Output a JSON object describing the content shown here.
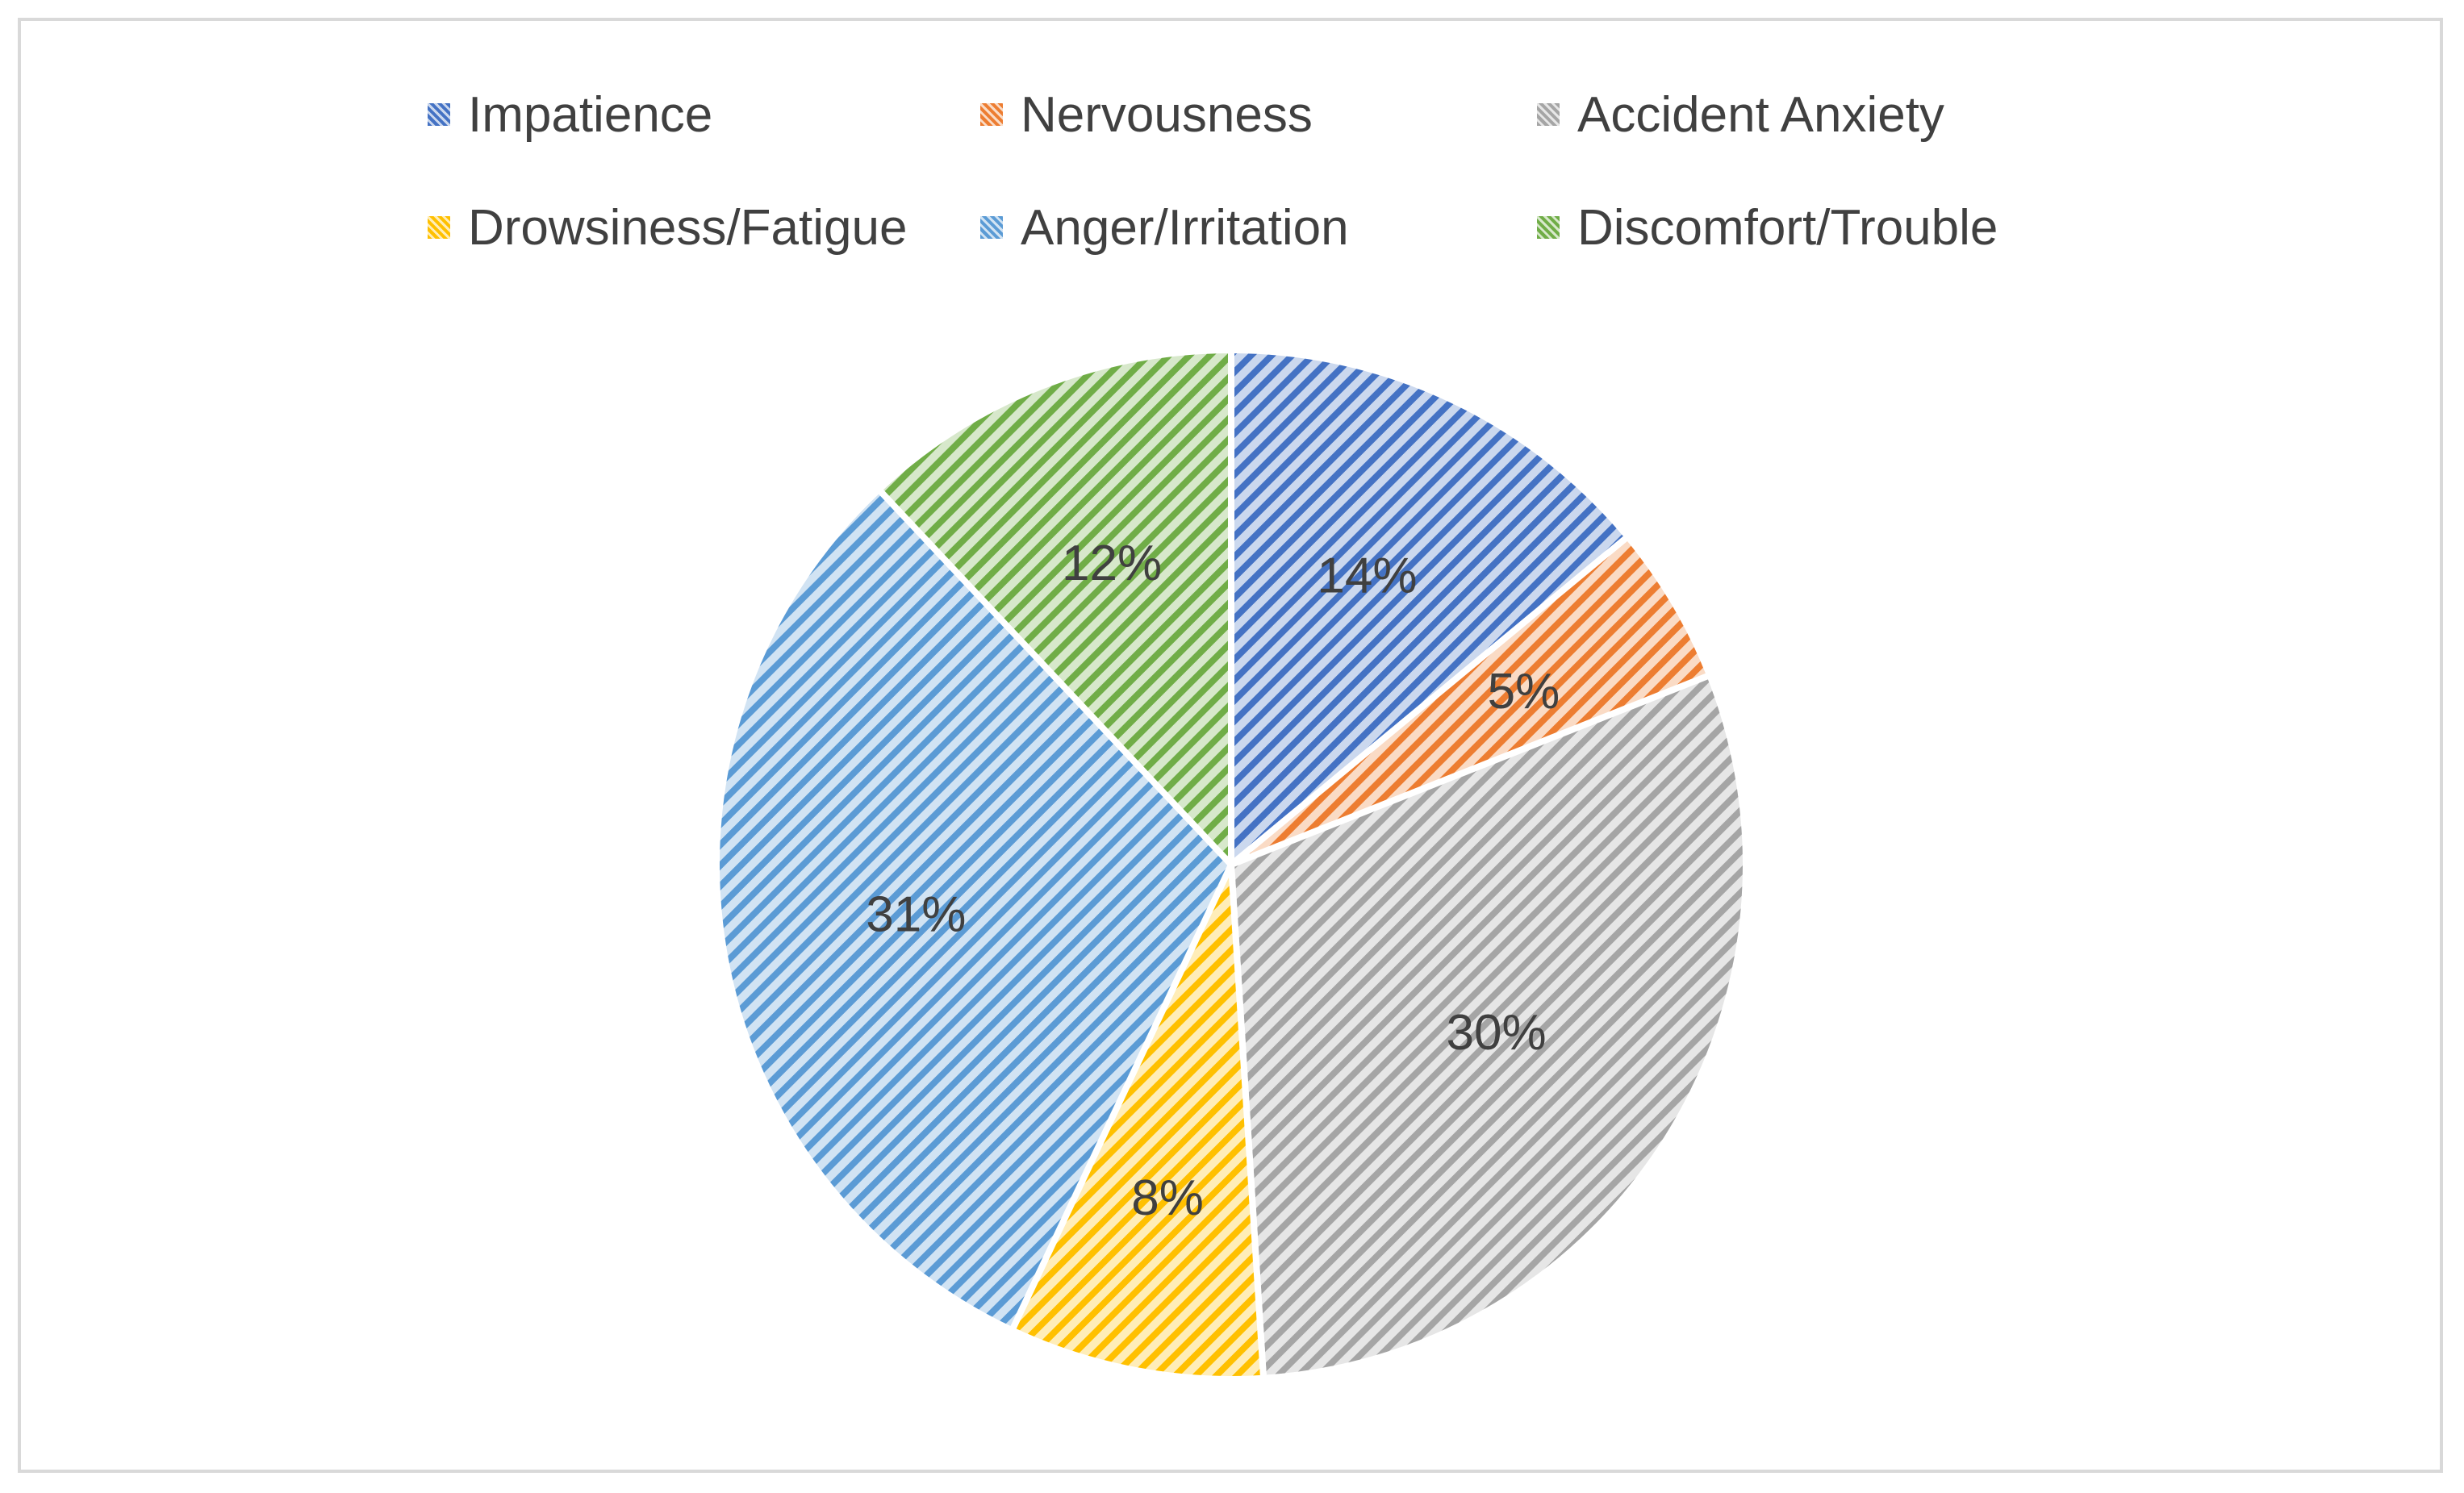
{
  "chart_data": {
    "type": "pie",
    "title": "",
    "legend_position": "top",
    "slices": [
      {
        "label": "Impatience",
        "value": 14,
        "display": "14%",
        "color": "#4472c4"
      },
      {
        "label": "Nervousness",
        "value": 5,
        "display": "5%",
        "color": "#ed7d31"
      },
      {
        "label": "Accident Anxiety",
        "value": 30,
        "display": "30%",
        "color": "#a5a5a5"
      },
      {
        "label": "Drowsiness/Fatigue",
        "value": 8,
        "display": "8%",
        "color": "#ffc000"
      },
      {
        "label": "Anger/Irritation",
        "value": 31,
        "display": "31%",
        "color": "#5b9bd5"
      },
      {
        "label": "Discomfort/Trouble",
        "value": 12,
        "display": "12%",
        "color": "#70ad47"
      }
    ],
    "slice_fill": "diagonal-stripes"
  }
}
